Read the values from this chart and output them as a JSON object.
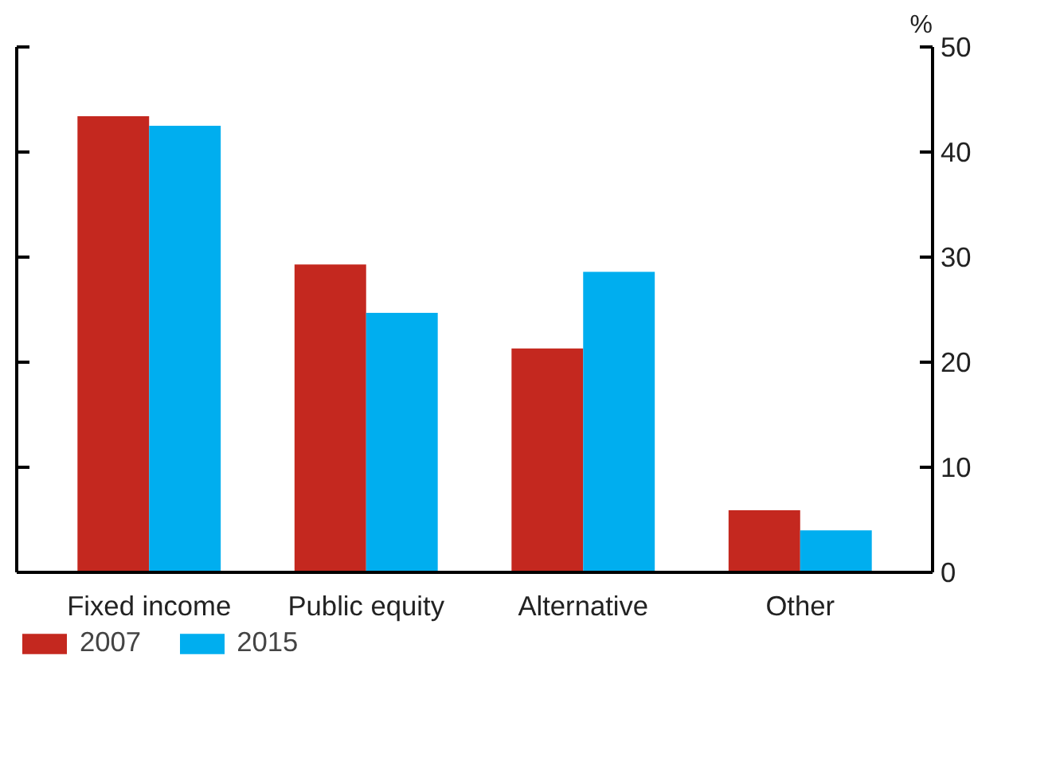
{
  "chart_data": {
    "type": "bar",
    "categories": [
      "Fixed income",
      "Public equity",
      "Alternative",
      "Other"
    ],
    "series": [
      {
        "name": "2007",
        "color": "#c4281f",
        "values": [
          43.4,
          29.3,
          21.3,
          5.9
        ]
      },
      {
        "name": "2015",
        "color": "#00aeef",
        "values": [
          42.5,
          24.7,
          28.6,
          4.0
        ]
      }
    ],
    "ylim": [
      0,
      50
    ],
    "yticks": [
      0,
      10,
      20,
      30,
      40,
      50
    ],
    "ylabel": "%",
    "grid": false,
    "legend": "bottom"
  }
}
